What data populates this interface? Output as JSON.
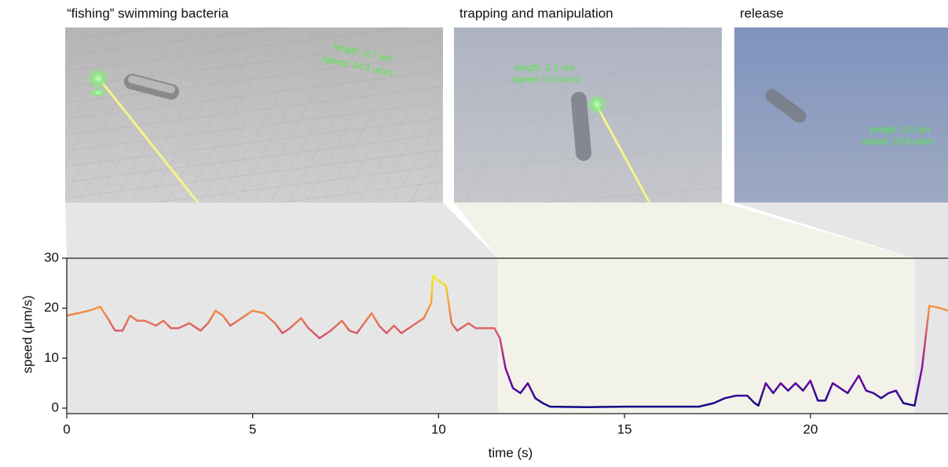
{
  "panels": [
    {
      "title": "“fishing” swimming bacteria",
      "readout": [
        "length: 2.7 um",
        "speed: 24.0 um/s"
      ]
    },
    {
      "title": "trapping and manipulation",
      "readout": [
        "length: 3.1 um",
        "speed: 0.0 um/s"
      ]
    },
    {
      "title": "release",
      "readout": [
        "length: 3.0 um",
        "speed: 20.6 um/s"
      ]
    }
  ],
  "chart_data": {
    "type": "line",
    "x_label": "time (s)",
    "y_label": "speed (μm/s)",
    "xlim": [
      0,
      23.7
    ],
    "xticks": [
      0,
      5,
      10,
      15,
      20
    ],
    "ylim": [
      -1.1,
      30
    ],
    "yticks": [
      0,
      10,
      20,
      30
    ],
    "colormap": "plasma",
    "color_range": [
      0,
      27
    ],
    "spans": [
      {
        "start": 0,
        "end": 11.6,
        "color": "#e6e6e6"
      },
      {
        "start": 11.6,
        "end": 22.8,
        "color": "#f3f2e8"
      },
      {
        "start": 22.8,
        "end": 23.7,
        "color": "#e6e6e6"
      }
    ],
    "x": [
      0,
      0.3,
      0.6,
      0.9,
      1.1,
      1.3,
      1.5,
      1.7,
      1.9,
      2.1,
      2.4,
      2.6,
      2.8,
      3.0,
      3.3,
      3.6,
      3.8,
      4.0,
      4.2,
      4.4,
      4.7,
      5.0,
      5.3,
      5.6,
      5.8,
      6.0,
      6.3,
      6.5,
      6.8,
      7.1,
      7.4,
      7.6,
      7.8,
      8.0,
      8.2,
      8.4,
      8.6,
      8.8,
      9.0,
      9.3,
      9.6,
      9.8,
      9.85,
      10.0,
      10.2,
      10.35,
      10.5,
      10.8,
      11.0,
      11.3,
      11.5,
      11.65,
      11.8,
      12.0,
      12.2,
      12.4,
      12.6,
      12.8,
      13.0,
      14,
      15,
      16,
      17,
      17.4,
      17.7,
      18.0,
      18.3,
      18.5,
      18.6,
      18.8,
      19.0,
      19.2,
      19.4,
      19.6,
      19.8,
      20.0,
      20.2,
      20.4,
      20.6,
      20.8,
      21.0,
      21.3,
      21.5,
      21.7,
      21.9,
      22.1,
      22.3,
      22.5,
      22.8,
      23.0,
      23.2,
      23.5,
      23.7
    ],
    "values": [
      18.5,
      19,
      19.5,
      20.3,
      18,
      15.5,
      15.5,
      18.5,
      17.5,
      17.5,
      16.5,
      17.5,
      16,
      16,
      17,
      15.5,
      17,
      19.5,
      18.5,
      16.5,
      18,
      19.5,
      19,
      17,
      15,
      16,
      18,
      16,
      14,
      15.5,
      17.5,
      15.5,
      15,
      17,
      19,
      16.5,
      15,
      16.5,
      15,
      16.5,
      18,
      21,
      26.5,
      25.5,
      24.5,
      17,
      15.5,
      17,
      16,
      16,
      16,
      14,
      8,
      4,
      3,
      5,
      2,
      1,
      0.3,
      0.2,
      0.3,
      0.3,
      0.3,
      1,
      2,
      2.5,
      2.5,
      1,
      0.5,
      5,
      3,
      5,
      3.5,
      5,
      3.5,
      5.5,
      1.5,
      1.5,
      5,
      4,
      3,
      6.5,
      3.5,
      3,
      2,
      3,
      3.5,
      1,
      0.5,
      8,
      20.5,
      20,
      19.5
    ]
  }
}
